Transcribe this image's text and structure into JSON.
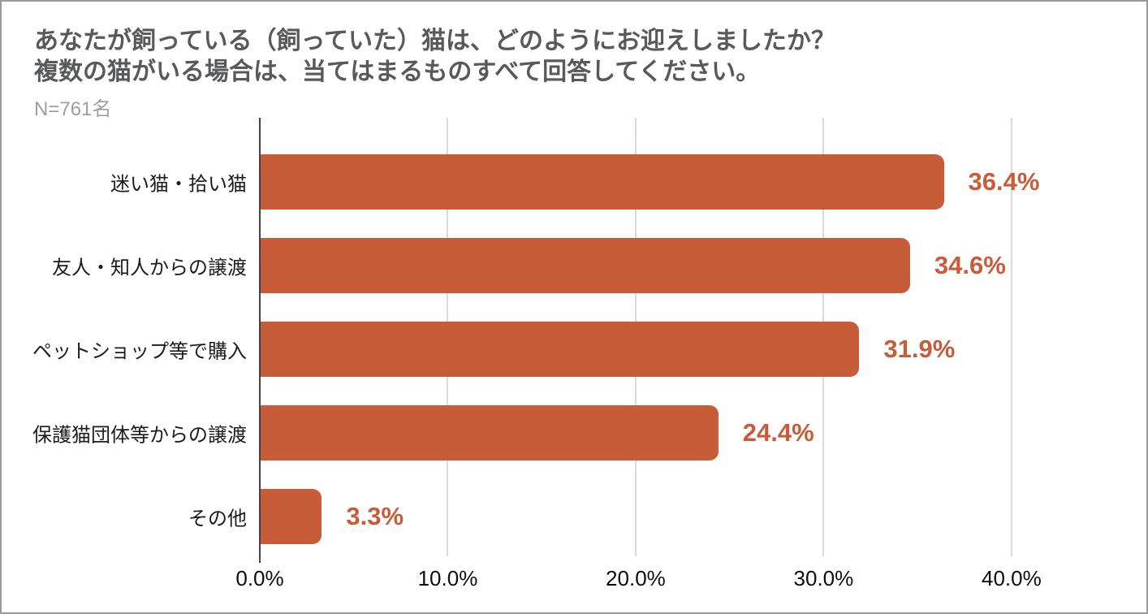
{
  "header": {
    "title_line1": "あなたが飼っている（飼っていた）猫は、どのようにお迎えしましたか？",
    "title_line2": "複数の猫がいる場合は、当てはまるものすべて回答してください。",
    "sample_size": "N=761名"
  },
  "colors": {
    "bar": "#C85C38",
    "value_label": "#C85C38",
    "title": "#58595B",
    "subtitle": "#9E9E9E",
    "category_label": "#1C1C1C",
    "gridline": "#D9D9D9",
    "axis_line": "#424242",
    "frame_border": "#9A9A9A"
  },
  "chart_data": {
    "type": "bar",
    "orientation": "horizontal",
    "title": "あなたが飼っている（飼っていた）猫は、どのようにお迎えしましたか？ 複数の猫がいる場合は、当てはまるものすべて回答してください。",
    "sample_size": "N=761名",
    "categories": [
      "迷い猫・拾い猫",
      "友人・知人からの譲渡",
      "ペットショップ等で購入",
      "保護猫団体等からの譲渡",
      "その他"
    ],
    "values": [
      36.4,
      34.6,
      31.9,
      24.4,
      3.3
    ],
    "value_suffix": "%",
    "xlabel": "",
    "ylabel": "",
    "xlim": [
      0,
      46.4
    ],
    "x_tick_values": [
      0,
      10,
      20,
      30,
      40
    ],
    "x_tick_labels": [
      "0.0%",
      "10.0%",
      "20.0%",
      "30.0%",
      "40.0%"
    ],
    "grid": true,
    "legend": false
  }
}
